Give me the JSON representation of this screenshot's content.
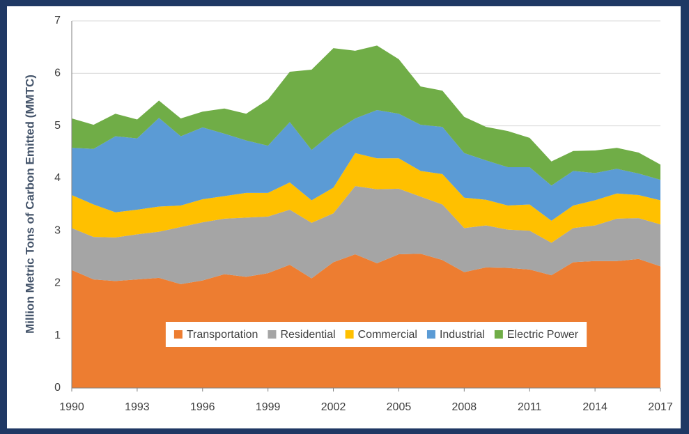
{
  "chart_data": {
    "type": "stacked_area",
    "ylabel": "Million Metric Tons of Carbon Emitted (MMTC)",
    "x": [
      1990,
      1991,
      1992,
      1993,
      1994,
      1995,
      1996,
      1997,
      1998,
      1999,
      2000,
      2001,
      2002,
      2003,
      2004,
      2005,
      2006,
      2007,
      2008,
      2009,
      2010,
      2011,
      2012,
      2013,
      2014,
      2015,
      2016,
      2017
    ],
    "xlim": [
      1990,
      2017
    ],
    "xticks": [
      1990,
      1993,
      1996,
      1999,
      2002,
      2005,
      2008,
      2011,
      2014,
      2017
    ],
    "ylim": [
      0,
      7
    ],
    "yticks": [
      0,
      1,
      2,
      3,
      4,
      5,
      6,
      7
    ],
    "grid": true,
    "legend": "bottom",
    "series": [
      {
        "name": "Transportation",
        "color": "#ed7d31",
        "values": [
          2.25,
          2.07,
          2.04,
          2.07,
          2.1,
          1.98,
          2.05,
          2.17,
          2.12,
          2.19,
          2.35,
          2.09,
          2.4,
          2.55,
          2.38,
          2.55,
          2.56,
          2.44,
          2.21,
          2.3,
          2.29,
          2.26,
          2.15,
          2.4,
          2.42,
          2.42,
          2.46,
          2.32
        ]
      },
      {
        "name": "Residential",
        "color": "#a5a5a5",
        "values": [
          0.8,
          0.81,
          0.83,
          0.86,
          0.88,
          1.09,
          1.11,
          1.06,
          1.13,
          1.08,
          1.05,
          1.06,
          0.93,
          1.3,
          1.41,
          1.25,
          1.09,
          1.06,
          0.84,
          0.8,
          0.73,
          0.74,
          0.62,
          0.65,
          0.68,
          0.81,
          0.78,
          0.8
        ]
      },
      {
        "name": "Commercial",
        "color": "#ffc000",
        "values": [
          0.63,
          0.62,
          0.48,
          0.47,
          0.48,
          0.41,
          0.44,
          0.43,
          0.47,
          0.45,
          0.52,
          0.43,
          0.49,
          0.63,
          0.59,
          0.58,
          0.49,
          0.58,
          0.58,
          0.49,
          0.46,
          0.5,
          0.42,
          0.43,
          0.48,
          0.48,
          0.44,
          0.46
        ]
      },
      {
        "name": "Industrial",
        "color": "#5b9bd5",
        "values": [
          0.9,
          1.06,
          1.45,
          1.36,
          1.69,
          1.32,
          1.37,
          1.19,
          1.0,
          0.9,
          1.15,
          0.96,
          1.06,
          0.66,
          0.92,
          0.85,
          0.88,
          0.9,
          0.85,
          0.75,
          0.73,
          0.71,
          0.67,
          0.66,
          0.52,
          0.47,
          0.41,
          0.39
        ]
      },
      {
        "name": "Electric Power",
        "color": "#70ad47",
        "values": [
          0.56,
          0.46,
          0.43,
          0.36,
          0.33,
          0.34,
          0.3,
          0.48,
          0.51,
          0.88,
          0.96,
          1.53,
          1.6,
          1.29,
          1.23,
          1.04,
          0.73,
          0.69,
          0.69,
          0.64,
          0.69,
          0.56,
          0.46,
          0.38,
          0.43,
          0.4,
          0.4,
          0.29
        ]
      }
    ]
  }
}
